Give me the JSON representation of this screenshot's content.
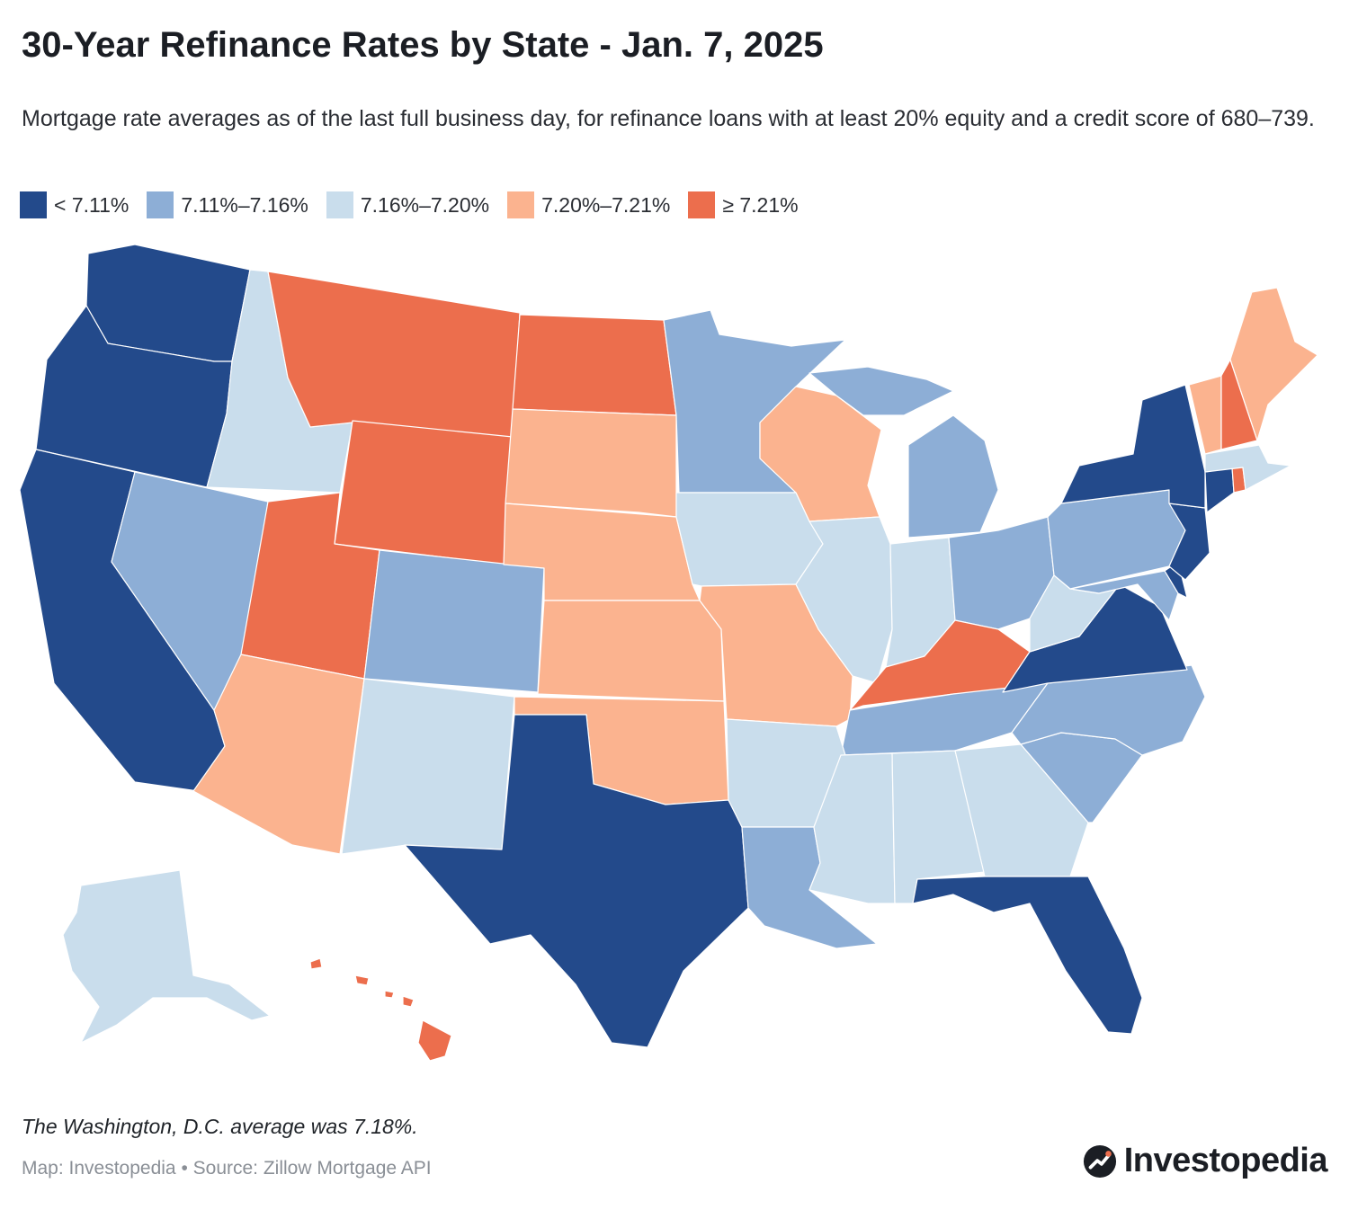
{
  "header": {
    "title": "30-Year Refinance Rates by State - Jan. 7, 2025",
    "subtitle": "Mortgage rate averages as of the last full business day, for refinance loans with at least 20% equity and a credit score of 680–739."
  },
  "legend": [
    {
      "label": "< 7.11%",
      "color": "#234a8b"
    },
    {
      "label": "7.11%–7.16%",
      "color": "#8daed6"
    },
    {
      "label": "7.16%–7.20%",
      "color": "#c9ddec"
    },
    {
      "label": "7.20%–7.21%",
      "color": "#fbb38f"
    },
    {
      "label": "≥ 7.21%",
      "color": "#ec6e4d"
    }
  ],
  "map_data": {
    "bins": [
      "< 7.11%",
      "7.11%–7.16%",
      "7.16%–7.20%",
      "7.20%–7.21%",
      "≥ 7.21%"
    ],
    "states": {
      "WA": 0,
      "OR": 0,
      "CA": 0,
      "TX": 0,
      "FL": 0,
      "VA": 0,
      "NY": 0,
      "NJ": 0,
      "CT": 0,
      "DE": 0,
      "NV": 1,
      "CO": 1,
      "MN": 1,
      "MI": 1,
      "OH": 1,
      "PA": 1,
      "TN": 1,
      "NC": 1,
      "SC": 1,
      "LA": 1,
      "MD": 1,
      "ID": 2,
      "NM": 2,
      "IA": 2,
      "IL": 2,
      "IN": 2,
      "AR": 2,
      "MS": 2,
      "AL": 2,
      "GA": 2,
      "WV": 2,
      "MA": 2,
      "AK": 2,
      "AZ": 3,
      "SD": 3,
      "NE": 3,
      "KS": 3,
      "OK": 3,
      "MO": 3,
      "WI": 3,
      "VT": 3,
      "ME": 3,
      "MT": 4,
      "ND": 4,
      "WY": 4,
      "UT": 4,
      "KY": 4,
      "NH": 4,
      "RI": 4,
      "HI": 4
    }
  },
  "footer": {
    "note": "The Washington, D.C. average was 7.18%.",
    "source": "Map: Investopedia • Source: Zillow Mortgage API",
    "brand": "Investopedia"
  }
}
